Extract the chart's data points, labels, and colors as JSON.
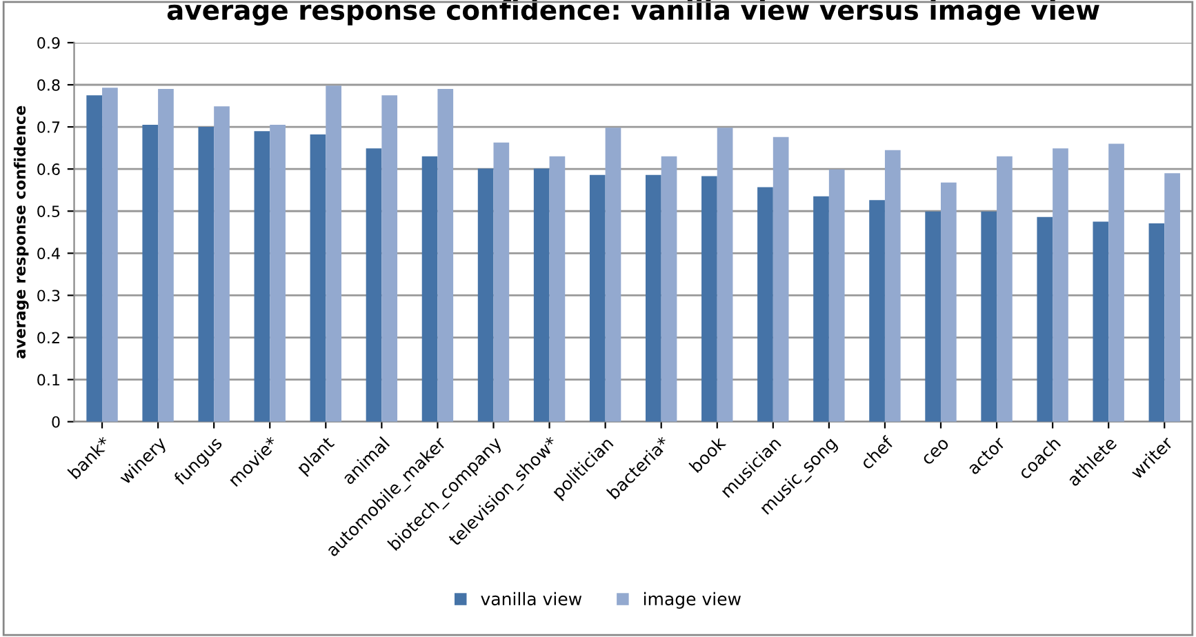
{
  "chart_data": {
    "type": "bar",
    "title": "average response confidence: vanilla view versus image view",
    "ylabel": "average response confidence",
    "categories": [
      "bank*",
      "winery",
      "fungus",
      "movie*",
      "plant",
      "animal",
      "automobile_maker",
      "biotech_company",
      "television_show*",
      "politician",
      "bacteria*",
      "book",
      "musician",
      "music_song",
      "chef",
      "ceo",
      "actor",
      "coach",
      "athlete",
      "writer"
    ],
    "series": [
      {
        "name": "vanilla view",
        "color": "#4573a7",
        "values": [
          0.775,
          0.705,
          0.7,
          0.69,
          0.682,
          0.649,
          0.63,
          0.601,
          0.601,
          0.586,
          0.586,
          0.583,
          0.557,
          0.535,
          0.526,
          0.499,
          0.499,
          0.486,
          0.475,
          0.471
        ]
      },
      {
        "name": "image view",
        "color": "#93a9cf",
        "values": [
          0.793,
          0.79,
          0.749,
          0.705,
          0.798,
          0.775,
          0.79,
          0.663,
          0.63,
          0.698,
          0.63,
          0.698,
          0.676,
          0.599,
          0.645,
          0.568,
          0.63,
          0.649,
          0.66,
          0.59
        ]
      }
    ],
    "ylim": [
      0,
      0.9
    ],
    "yticks": [
      0,
      0.1,
      0.2,
      0.3,
      0.4,
      0.5,
      0.6,
      0.7,
      0.8,
      0.9
    ],
    "grid": "y",
    "legend": "bottom"
  }
}
